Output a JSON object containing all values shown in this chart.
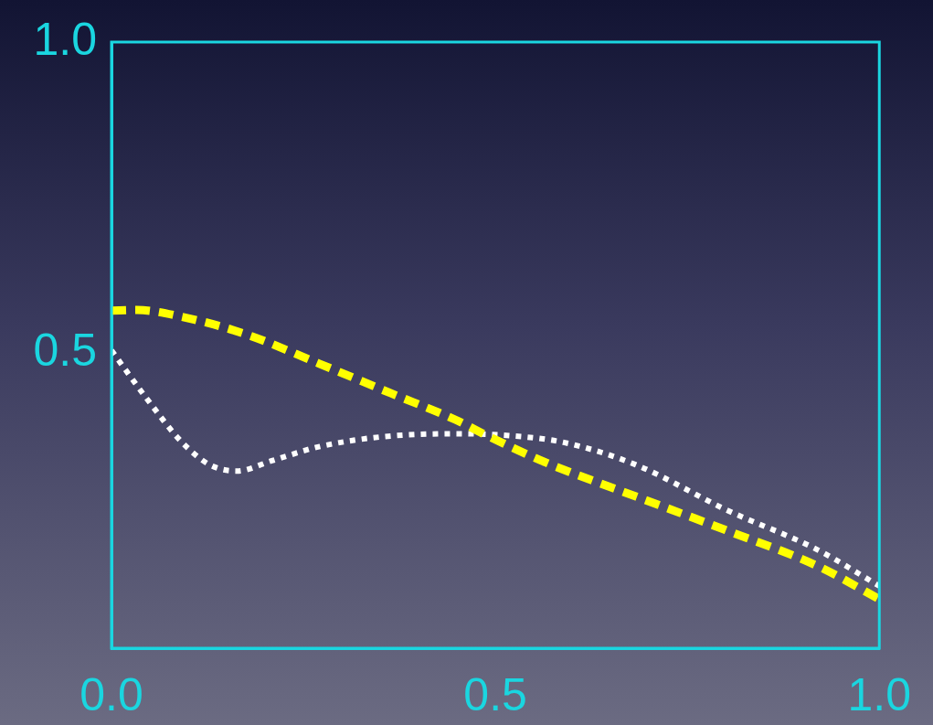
{
  "chart_data": {
    "type": "line",
    "xlim": [
      0,
      1
    ],
    "ylim": [
      0.025,
      1.0
    ],
    "xticks": [
      {
        "value": 0,
        "label": "0.0"
      },
      {
        "value": 0.5,
        "label": "0.5"
      },
      {
        "value": 1,
        "label": "1.0"
      }
    ],
    "yticks": [
      {
        "value": 0.5,
        "label": "0.5"
      },
      {
        "value": 1.0,
        "label": "1.0"
      }
    ],
    "grid": false,
    "legend": false,
    "marker": "none",
    "series": [
      {
        "color": "#ffff00",
        "line_style": "dashed",
        "x": [
          0,
          0.033,
          0.092,
          0.175,
          0.27,
          0.364,
          0.447,
          0.494,
          0.565,
          0.683,
          0.8,
          0.92,
          1.0
        ],
        "values": [
          0.568,
          0.569,
          0.558,
          0.53,
          0.483,
          0.435,
          0.393,
          0.364,
          0.324,
          0.269,
          0.215,
          0.157,
          0.104
        ]
      },
      {
        "color": "#ffffff",
        "line_style": "dotted",
        "x": [
          0,
          0.045,
          0.092,
          0.128,
          0.163,
          0.21,
          0.27,
          0.352,
          0.447,
          0.518,
          0.589,
          0.683,
          0.8,
          0.92,
          1.0
        ],
        "values": [
          0.504,
          0.428,
          0.356,
          0.32,
          0.31,
          0.327,
          0.349,
          0.365,
          0.37,
          0.367,
          0.356,
          0.32,
          0.248,
          0.183,
          0.125
        ]
      }
    ]
  }
}
